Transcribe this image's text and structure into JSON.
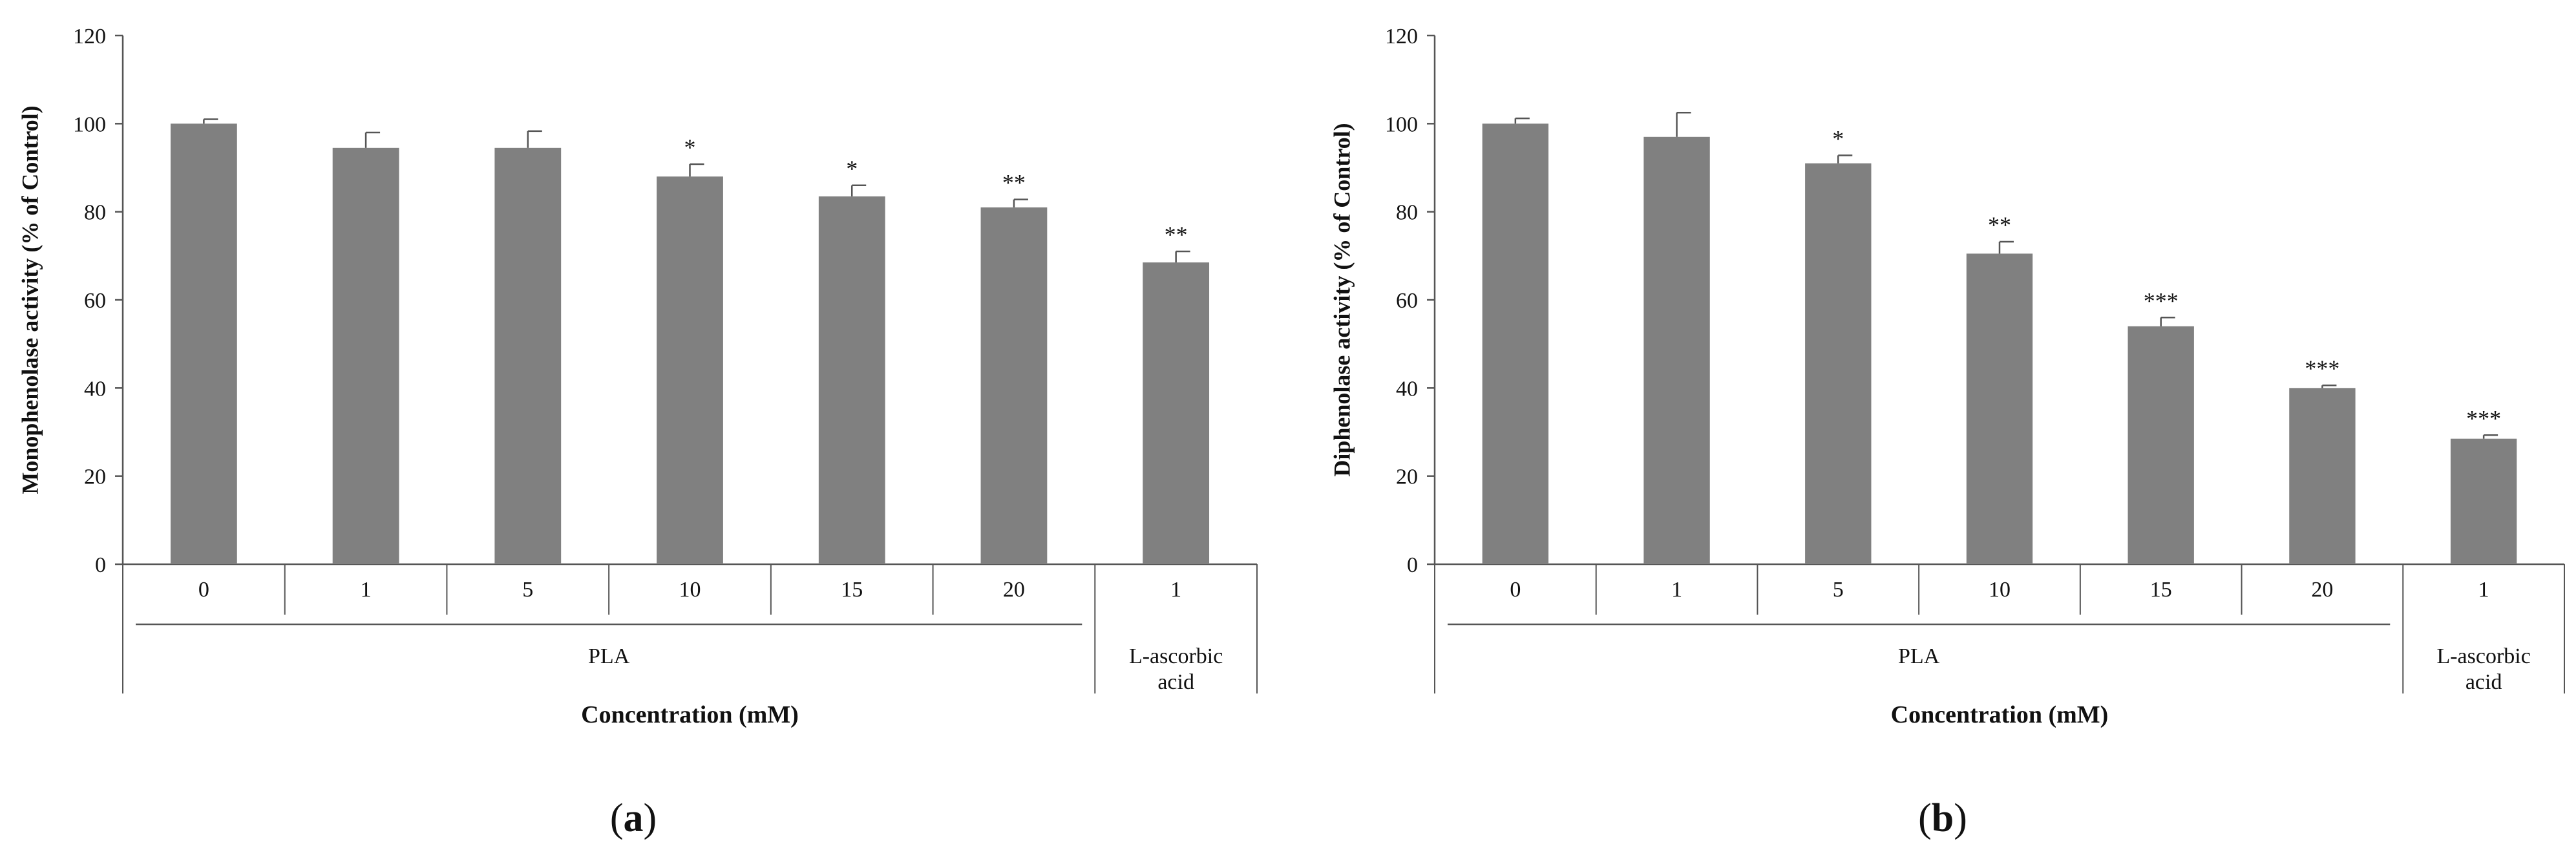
{
  "figure": {
    "panel_labels": [
      {
        "open": "(",
        "letter": "a",
        "close": ")"
      },
      {
        "open": "(",
        "letter": "b",
        "close": ")"
      }
    ]
  },
  "chart_data": [
    {
      "type": "bar",
      "panel": "a",
      "ylabel": "Monophenolase activity (% of Control)",
      "xlabel": "Concentration (mM)",
      "ylim": [
        0,
        120
      ],
      "yticks": [
        0,
        20,
        40,
        60,
        80,
        100,
        120
      ],
      "grid": false,
      "bar_color": "#808080",
      "categories": [
        "0",
        "1",
        "5",
        "10",
        "15",
        "20",
        "1"
      ],
      "values": [
        100,
        94.5,
        94.5,
        88,
        83.5,
        81,
        68.5
      ],
      "errors": [
        1,
        3.5,
        3.8,
        2.8,
        2.5,
        1.8,
        2.5
      ],
      "annotations": [
        "",
        "",
        "",
        "*",
        "*",
        "**",
        "**"
      ],
      "groups": [
        {
          "label": "PLA",
          "span": [
            0,
            5
          ]
        },
        {
          "label": "L-ascorbic acid",
          "lines": [
            "L-ascorbic",
            "acid"
          ],
          "span": [
            6,
            6
          ]
        }
      ]
    },
    {
      "type": "bar",
      "panel": "b",
      "ylabel": "Diphenolase activity (% of Control)",
      "xlabel": "Concentration (mM)",
      "ylim": [
        0,
        120
      ],
      "yticks": [
        0,
        20,
        40,
        60,
        80,
        100,
        120
      ],
      "grid": false,
      "bar_color": "#808080",
      "categories": [
        "0",
        "1",
        "5",
        "10",
        "15",
        "20",
        "1"
      ],
      "values": [
        100,
        97,
        91,
        70.5,
        54,
        40,
        28.5
      ],
      "errors": [
        1.2,
        5.5,
        1.8,
        2.7,
        2,
        0.6,
        0.8
      ],
      "annotations": [
        "",
        "",
        "*",
        "**",
        "***",
        "***",
        "***"
      ],
      "groups": [
        {
          "label": "PLA",
          "span": [
            0,
            5
          ]
        },
        {
          "label": "L-ascorbic acid",
          "lines": [
            "L-ascorbic",
            "acid"
          ],
          "span": [
            6,
            6
          ]
        }
      ]
    }
  ]
}
